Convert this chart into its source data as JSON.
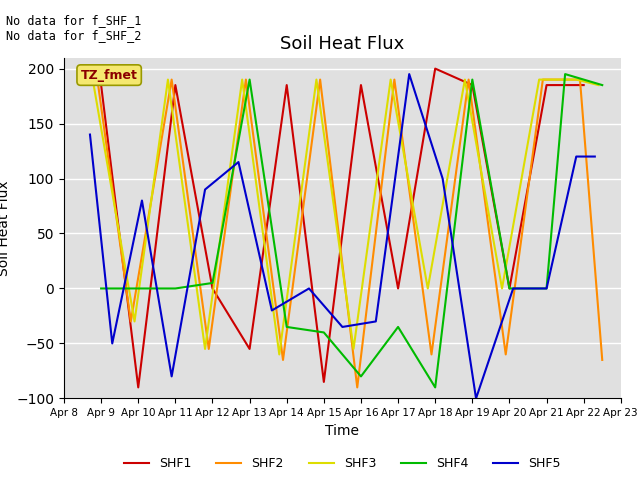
{
  "title": "Soil Heat Flux",
  "ylabel": "Soil Heat Flux",
  "xlabel": "Time",
  "ylim": [
    -100,
    210
  ],
  "xlim": [
    0,
    15
  ],
  "annotation_text": "No data for f_SHF_1\nNo data for f_SHF_2",
  "box_label": "TZ_fmet",
  "x_tick_labels": [
    "Apr 8",
    "Apr 9",
    "Apr 10",
    "Apr 11",
    "Apr 12",
    "Apr 13",
    "Apr 14",
    "Apr 15",
    "Apr 16",
    "Apr 17",
    "Apr 18",
    "Apr 19",
    "Apr 20",
    "Apr 21",
    "Apr 22",
    "Apr 23"
  ],
  "background_color": "#e0e0e0",
  "series": {
    "SHF1": {
      "color": "#cc0000",
      "x": [
        1,
        2,
        3,
        4,
        5,
        6,
        7,
        8,
        9,
        10,
        11,
        12,
        13,
        14
      ],
      "y": [
        185,
        -90,
        185,
        0,
        -55,
        185,
        -85,
        185,
        0,
        200,
        185,
        0,
        185,
        185
      ]
    },
    "SHF2": {
      "color": "#ff8c00",
      "x": [
        0.9,
        1.8,
        2.9,
        3.9,
        4.9,
        5.9,
        6.9,
        7.9,
        8.9,
        9.9,
        10.9,
        11.9,
        12.9,
        13.9,
        14.5
      ],
      "y": [
        190,
        -30,
        190,
        -55,
        190,
        -65,
        190,
        -90,
        190,
        -60,
        190,
        -60,
        190,
        190,
        -65
      ]
    },
    "SHF3": {
      "color": "#dddd00",
      "x": [
        0.8,
        1.9,
        2.8,
        3.8,
        4.8,
        5.8,
        6.8,
        7.8,
        8.8,
        9.8,
        10.8,
        11.8,
        12.8,
        13.8,
        14.4
      ],
      "y": [
        185,
        -30,
        190,
        -55,
        190,
        -60,
        190,
        -55,
        190,
        0,
        190,
        0,
        190,
        190,
        185
      ]
    },
    "SHF4": {
      "color": "#00bb00",
      "x": [
        1.0,
        2.0,
        3.0,
        4.0,
        5.0,
        6.0,
        7.0,
        8.0,
        9.0,
        10.0,
        11.0,
        12.0,
        13.0,
        13.5,
        14.0,
        14.5
      ],
      "y": [
        0,
        0,
        0,
        5,
        190,
        -35,
        -40,
        -80,
        -35,
        -90,
        190,
        0,
        0,
        195,
        190,
        185
      ]
    },
    "SHF5": {
      "color": "#0000cc",
      "x": [
        0.7,
        1.3,
        2.1,
        2.9,
        3.8,
        4.7,
        5.6,
        6.6,
        7.5,
        8.4,
        9.3,
        10.2,
        11.1,
        12.1,
        13.0,
        13.8,
        14.3
      ],
      "y": [
        140,
        -50,
        80,
        -80,
        90,
        115,
        -20,
        0,
        -35,
        -30,
        195,
        100,
        -100,
        0,
        0,
        120,
        120
      ]
    }
  }
}
